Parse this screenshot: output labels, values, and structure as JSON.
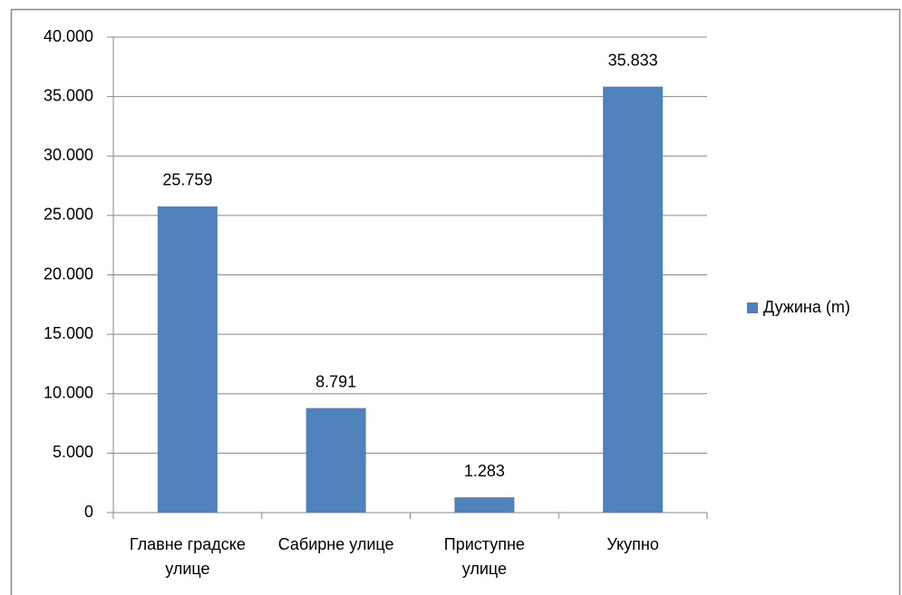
{
  "chart_data": {
    "type": "bar",
    "categories": [
      "Главне градске улице",
      "Сабирне улице",
      "Приступне улице",
      "Укупно"
    ],
    "series": [
      {
        "name": "Дужина (m)",
        "color": "#4f81bd",
        "values": [
          25759,
          8791,
          1283,
          35833
        ],
        "value_labels": [
          "25.759",
          "8.791",
          "1.283",
          "35.833"
        ]
      }
    ],
    "ylim": [
      0,
      40000
    ],
    "yticks": [
      0,
      {
        "value": 5000,
        "label": "5.000"
      },
      {
        "value": 10000,
        "label": "10.000"
      },
      {
        "value": 15000,
        "label": "15.000"
      },
      {
        "value": 20000,
        "label": "20.000"
      },
      {
        "value": 25000,
        "label": "25.000"
      },
      {
        "value": 30000,
        "label": "30.000"
      },
      {
        "value": 35000,
        "label": "35.000"
      },
      {
        "value": 40000,
        "label": "40.000"
      }
    ],
    "grid": true,
    "legend": "right"
  }
}
